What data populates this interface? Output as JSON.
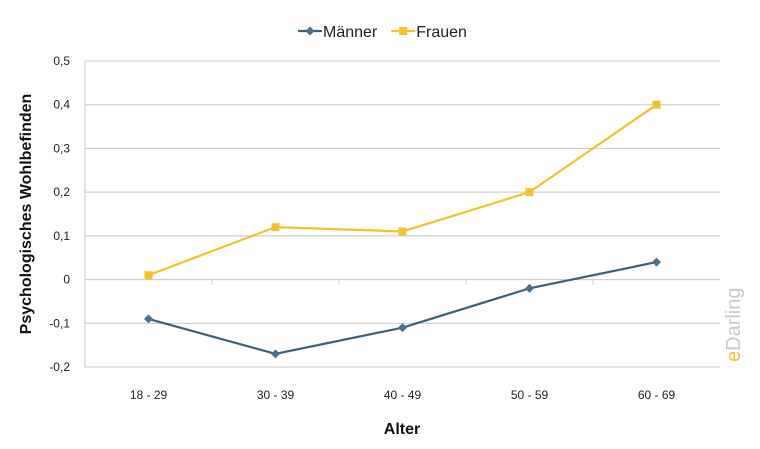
{
  "chart_data": {
    "type": "line",
    "title": "",
    "xlabel": "Alter",
    "ylabel": "Psychologisches Wohlbefinden",
    "categories": [
      "18 - 29",
      "30 - 39",
      "40 - 49",
      "50 - 59",
      "60 - 69"
    ],
    "ylim": [
      -0.2,
      0.5
    ],
    "yticks": [
      "-0,2",
      "-0,1",
      "0",
      "0,1",
      "0,2",
      "0,3",
      "0,4",
      "0,5"
    ],
    "grid": true,
    "legend_position": "top",
    "series": [
      {
        "name": "Männer",
        "values": [
          -0.09,
          -0.17,
          -0.11,
          -0.02,
          0.04
        ],
        "color": "#3e5f7a",
        "marker": "diamond"
      },
      {
        "name": "Frauen",
        "values": [
          0.01,
          0.12,
          0.11,
          0.2,
          0.4
        ],
        "color": "#f2c230",
        "marker": "square"
      }
    ]
  },
  "watermark": {
    "text": "eDarling",
    "accent": "e",
    "rest": "Darling"
  }
}
